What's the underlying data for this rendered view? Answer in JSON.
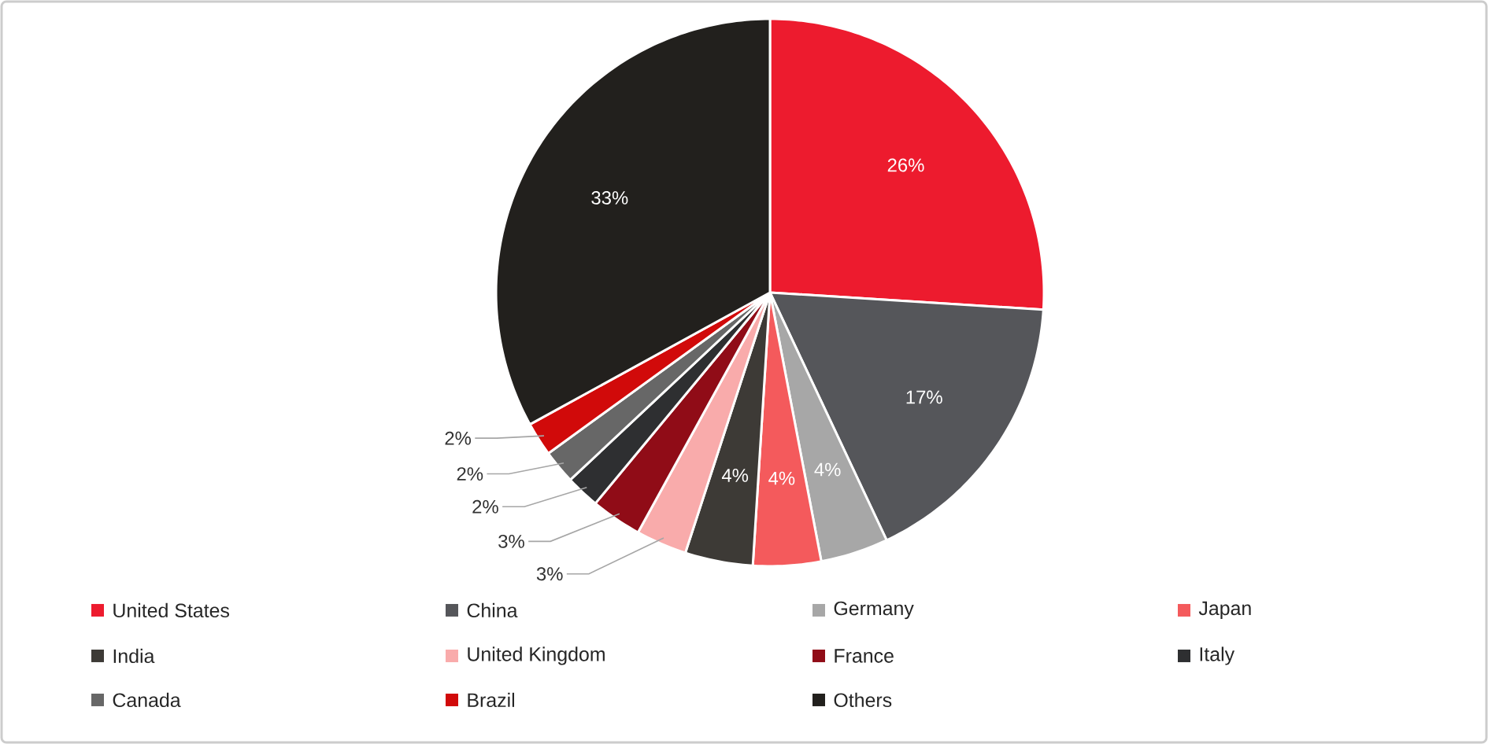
{
  "chart_data": {
    "type": "pie",
    "categories": [
      "United States",
      "China",
      "Germany",
      "Japan",
      "India",
      "United Kingdom",
      "France",
      "Italy",
      "Canada",
      "Brazil",
      "Others"
    ],
    "values": [
      26,
      17,
      4,
      4,
      4,
      3,
      3,
      2,
      2,
      2,
      33
    ],
    "value_labels": [
      "26%",
      "17%",
      "4%",
      "4%",
      "4%",
      "3%",
      "3%",
      "2%",
      "2%",
      "2%",
      "33%"
    ],
    "colors": [
      "#ed1b2e",
      "#55565a",
      "#a7a7a7",
      "#f45a5c",
      "#3d3a36",
      "#f9abab",
      "#900c17",
      "#2e2f31",
      "#676767",
      "#d10a0a",
      "#22201d"
    ],
    "legend": "bottom"
  }
}
